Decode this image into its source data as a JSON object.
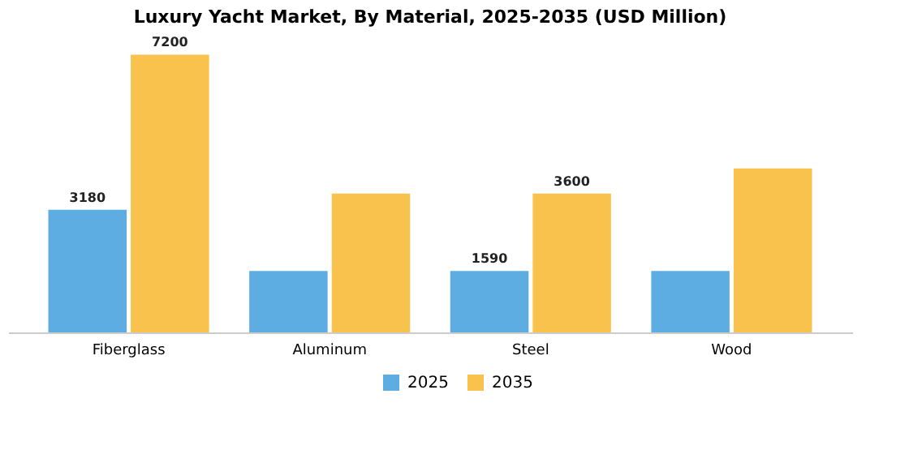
{
  "chart_data": {
    "type": "bar",
    "title": "Luxury Yacht Market, By Material, 2025-2035 (USD Million)",
    "categories": [
      "Fiberglass",
      "Aluminum",
      "Steel",
      "Wood"
    ],
    "series": [
      {
        "name": "2025",
        "color": "#5dade2",
        "values": [
          3180,
          1590,
          1590,
          1590
        ],
        "value_labels": [
          "3180",
          null,
          "1590",
          null
        ]
      },
      {
        "name": "2035",
        "color": "#f8c24c",
        "values": [
          7200,
          3600,
          3600,
          4250
        ],
        "value_labels": [
          "7200",
          null,
          "3600",
          null
        ]
      }
    ],
    "legend": "bottom",
    "grid": false,
    "tick_labels": "x"
  }
}
